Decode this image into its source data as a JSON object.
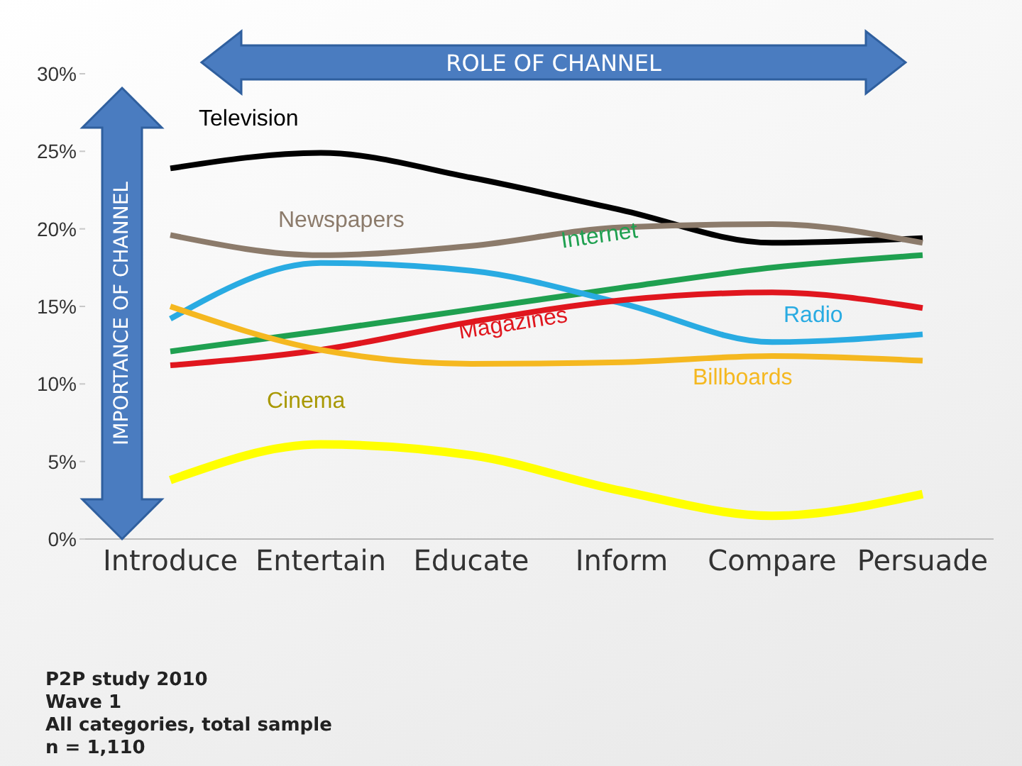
{
  "chart_data": {
    "type": "line",
    "categories": [
      "Introduce",
      "Entertain",
      "Educate",
      "Inform",
      "Compare",
      "Persuade"
    ],
    "series": [
      {
        "name": "Television",
        "color": "#000000",
        "values": [
          23.9,
          24.9,
          23.3,
          21.2,
          19.1,
          19.4
        ]
      },
      {
        "name": "Newspapers",
        "color": "#8c7b6b",
        "values": [
          19.6,
          18.3,
          18.9,
          20.1,
          20.3,
          19.1
        ]
      },
      {
        "name": "Internet",
        "color": "#1fa050",
        "values": [
          12.1,
          13.4,
          14.8,
          16.2,
          17.5,
          18.3
        ]
      },
      {
        "name": "Radio",
        "color": "#29abe2",
        "values": [
          14.2,
          17.8,
          17.3,
          15.2,
          12.7,
          13.2
        ]
      },
      {
        "name": "Magazines",
        "color": "#e0161e",
        "values": [
          11.2,
          12.2,
          14.0,
          15.4,
          15.9,
          14.9
        ]
      },
      {
        "name": "Billboards",
        "color": "#f5b820",
        "values": [
          15.0,
          12.2,
          11.3,
          11.4,
          11.8,
          11.5
        ]
      },
      {
        "name": "Cinema",
        "color": "#ffff00",
        "values": [
          3.8,
          6.1,
          5.4,
          3.1,
          1.5,
          2.9
        ]
      }
    ],
    "ylim": [
      0,
      30
    ],
    "yticks": [
      {
        "value": 0,
        "label": "0%"
      },
      {
        "value": 5,
        "label": "5%"
      },
      {
        "value": 10,
        "label": "10%"
      },
      {
        "value": 15,
        "label": "15%"
      },
      {
        "value": 20,
        "label": "20%"
      },
      {
        "value": 25,
        "label": "25%"
      },
      {
        "value": 30,
        "label": "30%"
      }
    ],
    "xlabel": "ROLE OF CHANNEL",
    "ylabel": "IMPORTANCE OF CHANNEL",
    "annotations": [
      "P2P study 2010",
      "Wave 1",
      "All categories, total sample",
      "n = 1,110"
    ],
    "grid": false,
    "legend": false,
    "marker": "none",
    "line_style": "solid"
  }
}
